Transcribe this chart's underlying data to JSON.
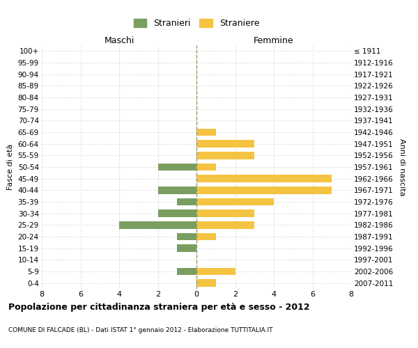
{
  "age_groups": [
    "100+",
    "95-99",
    "90-94",
    "85-89",
    "80-84",
    "75-79",
    "70-74",
    "65-69",
    "60-64",
    "55-59",
    "50-54",
    "45-49",
    "40-44",
    "35-39",
    "30-34",
    "25-29",
    "20-24",
    "15-19",
    "10-14",
    "5-9",
    "0-4"
  ],
  "birth_years": [
    "≤ 1911",
    "1912-1916",
    "1917-1921",
    "1922-1926",
    "1927-1931",
    "1932-1936",
    "1937-1941",
    "1942-1946",
    "1947-1951",
    "1952-1956",
    "1957-1961",
    "1962-1966",
    "1967-1971",
    "1972-1976",
    "1977-1981",
    "1982-1986",
    "1987-1991",
    "1992-1996",
    "1997-2001",
    "2002-2006",
    "2007-2011"
  ],
  "maschi": [
    0,
    0,
    0,
    0,
    0,
    0,
    0,
    0,
    0,
    0,
    2,
    0,
    2,
    1,
    2,
    4,
    1,
    1,
    0,
    1,
    0
  ],
  "femmine": [
    0,
    0,
    0,
    0,
    0,
    0,
    0,
    1,
    3,
    3,
    1,
    7,
    7,
    4,
    3,
    3,
    1,
    0,
    0,
    2,
    1
  ],
  "maschi_color": "#7a9e5f",
  "femmine_color": "#f5c342",
  "title": "Popolazione per cittadinanza straniera per età e sesso - 2012",
  "subtitle": "COMUNE DI FALCADE (BL) - Dati ISTAT 1° gennaio 2012 - Elaborazione TUTTITALIA.IT",
  "xlabel_left": "Maschi",
  "xlabel_right": "Femmine",
  "ylabel_left": "Fasce di età",
  "ylabel_right": "Anni di nascita",
  "legend_maschi": "Stranieri",
  "legend_femmine": "Straniere",
  "xlim": 8,
  "background_color": "#ffffff",
  "grid_color": "#d0d0d0"
}
